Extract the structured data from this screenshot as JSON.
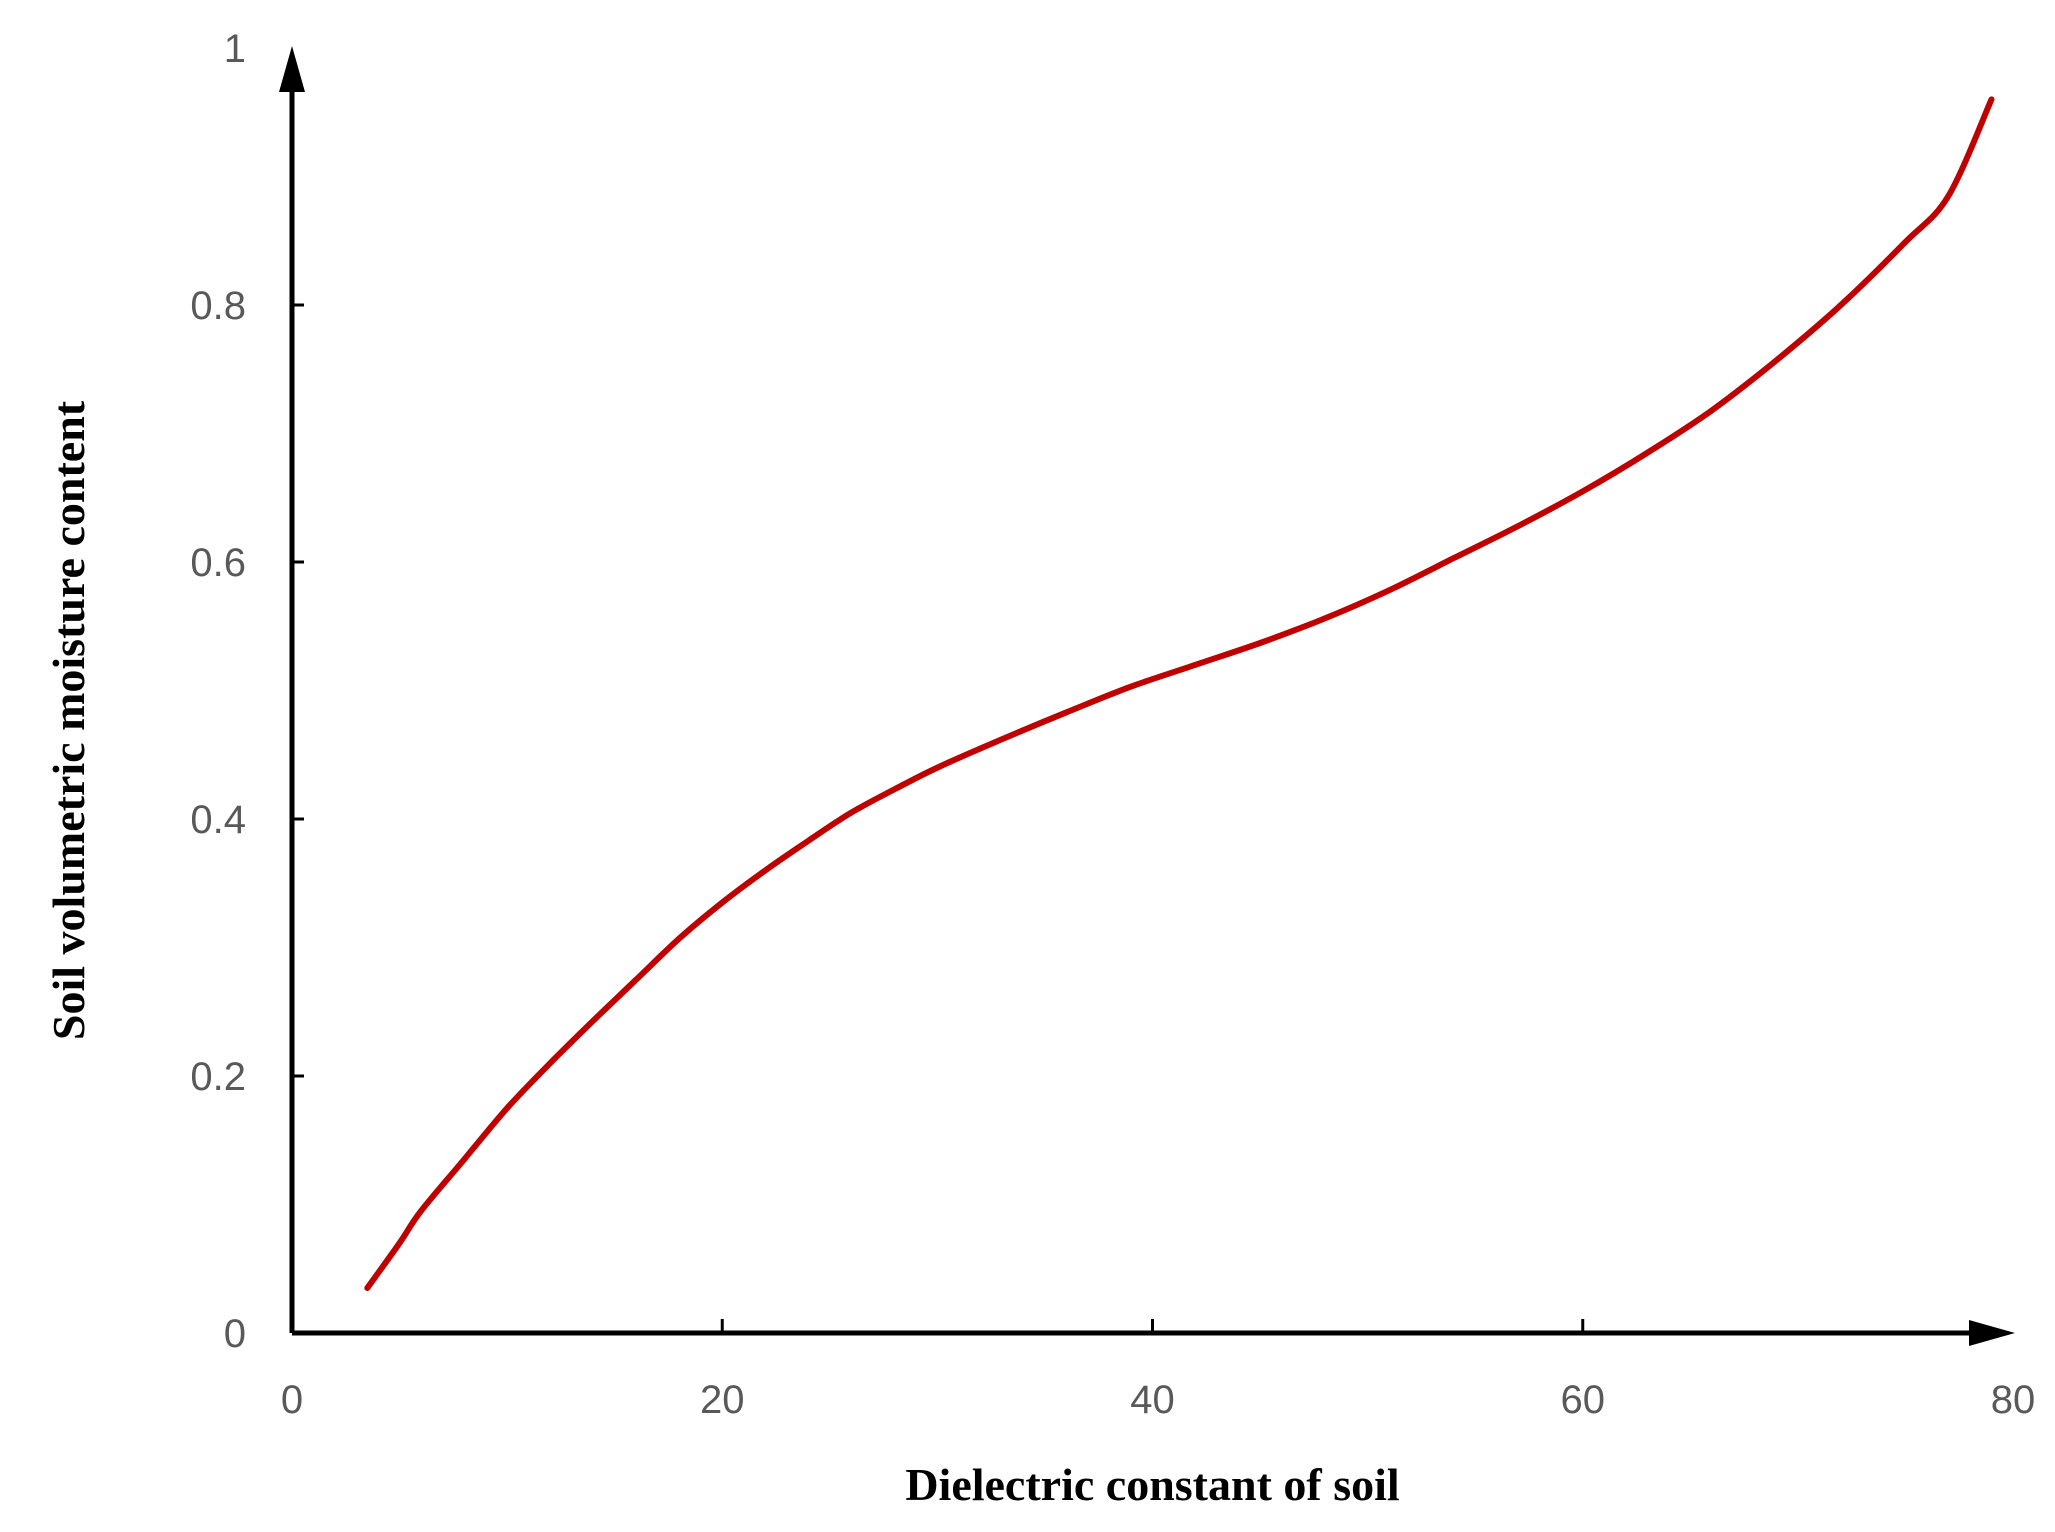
{
  "chart_data": {
    "type": "line",
    "title": "",
    "xlabel": "Dielectric constant of soil",
    "ylabel": "Soil volumetric moisture content",
    "xlim": [
      0,
      80
    ],
    "ylim": [
      0,
      1
    ],
    "x_ticks": [
      "0",
      "20",
      "40",
      "60",
      "80"
    ],
    "y_ticks": [
      "0",
      "0.2",
      "0.4",
      "0.6",
      "0.8",
      "1"
    ],
    "grid": false,
    "legend": "none",
    "series": [
      {
        "color": "#c00000",
        "x": [
          3.5,
          5,
          6,
          8,
          10,
          12,
          14,
          16,
          18,
          20,
          22,
          24,
          26,
          28,
          30,
          33,
          36,
          39,
          42,
          45,
          48,
          51,
          54,
          57,
          60,
          63,
          66,
          69,
          72,
          75,
          77,
          79
        ],
        "y": [
          0.035,
          0.07,
          0.095,
          0.135,
          0.175,
          0.21,
          0.243,
          0.275,
          0.307,
          0.335,
          0.36,
          0.383,
          0.405,
          0.423,
          0.44,
          0.462,
          0.483,
          0.503,
          0.52,
          0.537,
          0.556,
          0.578,
          0.603,
          0.628,
          0.655,
          0.685,
          0.718,
          0.757,
          0.8,
          0.849,
          0.885,
          0.96
        ]
      }
    ]
  }
}
